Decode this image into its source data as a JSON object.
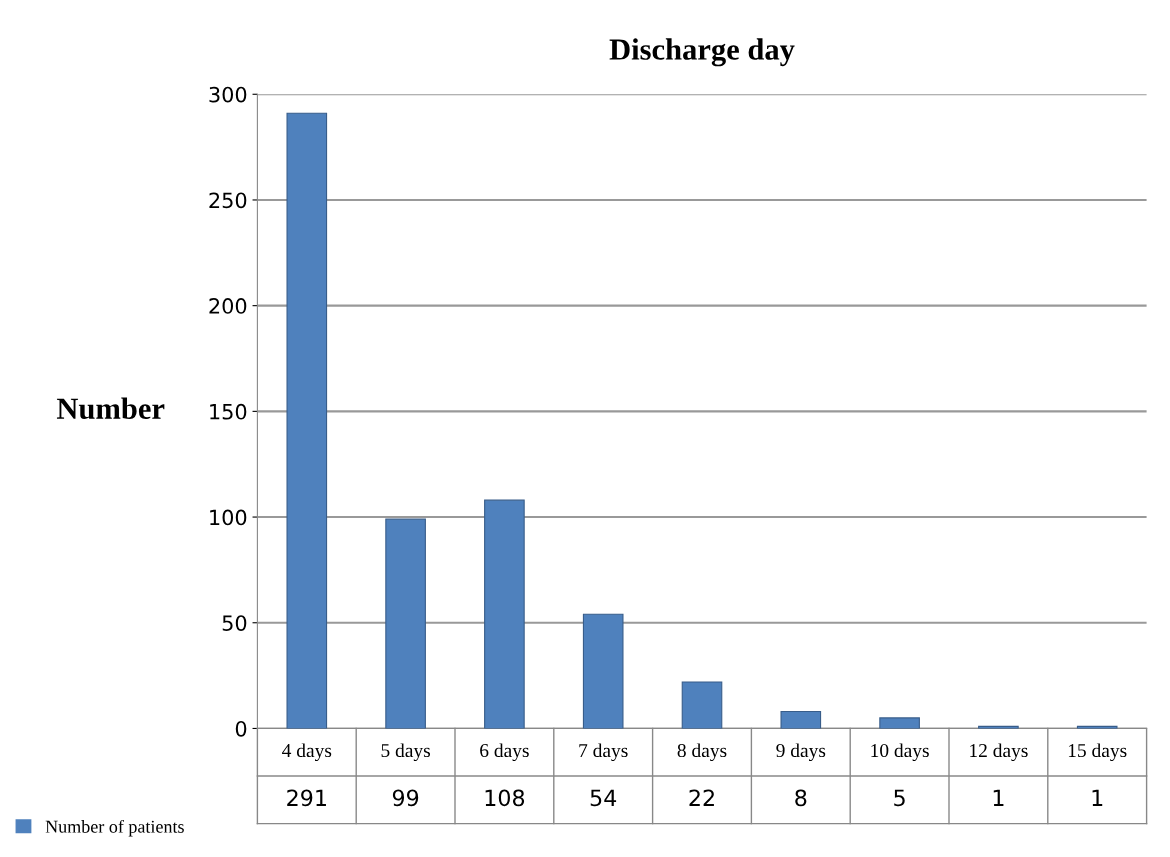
{
  "chart_data": {
    "type": "bar",
    "title": "Discharge day",
    "ylabel": "Number",
    "categories": [
      "4 days",
      "5 days",
      "6 days",
      "7 days",
      "8 days",
      "9 days",
      "10 days",
      "12 days",
      "15 days"
    ],
    "series": [
      {
        "name": "Number of patients",
        "color": "#4f81bd",
        "values": [
          291,
          99,
          108,
          54,
          22,
          8,
          5,
          1,
          1
        ]
      }
    ],
    "ylim": [
      0,
      300
    ],
    "yticks": [
      0,
      50,
      100,
      150,
      200,
      250,
      300
    ],
    "grid": "y",
    "legend": "bottom",
    "data_labels": true
  }
}
